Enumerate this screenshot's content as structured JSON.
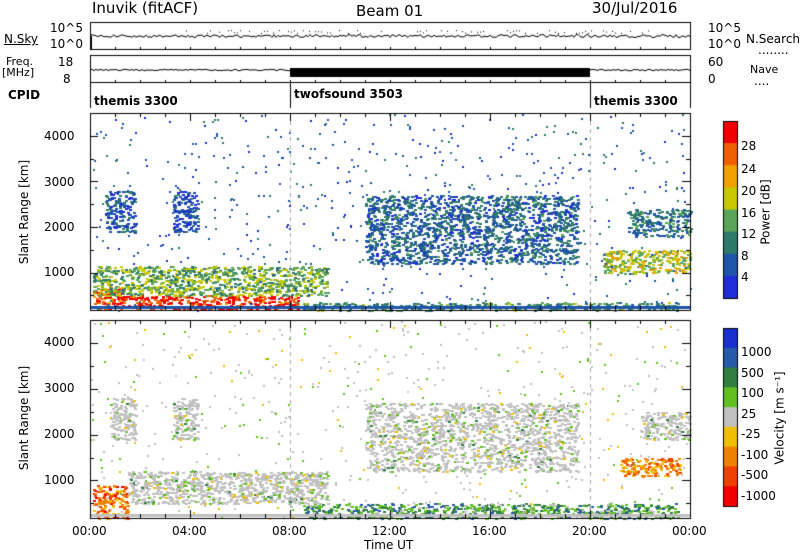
{
  "header": {
    "station": "Inuvik (fitACF)",
    "beam": "Beam 01",
    "date": "30/Jul/2016"
  },
  "top_panels": {
    "nsky_label": "N.Sky",
    "nsky_ticks": [
      "10^5",
      "10^0"
    ],
    "nsearch_label": "N.Search",
    "nsearch_ticks": [
      "10^5",
      "10^0"
    ],
    "freq_label": "Freq.",
    "freq_unit": "[MHz]",
    "freq_ticks": [
      "18",
      "8"
    ],
    "nave_label": "Nave",
    "nave_ticks": [
      "60",
      "0"
    ],
    "cpid_label": "CPID",
    "cpid_segments": [
      {
        "name": "themis 3300",
        "start_h": 0,
        "end_h": 8
      },
      {
        "name": "twofsound 3503",
        "start_h": 8,
        "end_h": 20
      },
      {
        "name": "themis 3300",
        "start_h": 20,
        "end_h": 24
      }
    ]
  },
  "chart_data": [
    {
      "type": "heatmap",
      "name": "power",
      "ylabel": "Slant Range [km]",
      "xlim": [
        0,
        24
      ],
      "ylim": [
        180,
        4500
      ],
      "yticks": [
        1000,
        2000,
        3000,
        4000
      ],
      "colorbar": {
        "label": "Power [dB]",
        "ticks": [
          4,
          8,
          12,
          16,
          20,
          24,
          28
        ],
        "colors": [
          "#1e2dd8",
          "#1f55a8",
          "#2e7a6a",
          "#5aa45a",
          "#c8c800",
          "#f0a000",
          "#f06000",
          "#f00000"
        ]
      },
      "regions": [
        {
          "x0": 0.1,
          "x1": 1.3,
          "y0": 180,
          "y1": 700,
          "level": 0.9
        },
        {
          "x0": 1.3,
          "x1": 8.3,
          "y0": 200,
          "y1": 500,
          "level": 0.95
        },
        {
          "x0": 0.1,
          "x1": 9.5,
          "y0": 500,
          "y1": 1150,
          "level": 0.45
        },
        {
          "x0": 0.6,
          "x1": 1.8,
          "y0": 1900,
          "y1": 2800,
          "level": 0.15
        },
        {
          "x0": 3.3,
          "x1": 4.3,
          "y0": 1900,
          "y1": 2800,
          "level": 0.1
        },
        {
          "x0": 8.5,
          "x1": 23.5,
          "y0": 180,
          "y1": 350,
          "level": 0.35
        },
        {
          "x0": 11.0,
          "x1": 19.5,
          "y0": 1200,
          "y1": 2700,
          "level": 0.2
        },
        {
          "x0": 20.5,
          "x1": 24.0,
          "y0": 1000,
          "y1": 1500,
          "level": 0.55
        },
        {
          "x0": 21.5,
          "x1": 24.0,
          "y0": 1800,
          "y1": 2400,
          "level": 0.25
        }
      ]
    },
    {
      "type": "heatmap",
      "name": "velocity",
      "xlabel": "Time UT",
      "ylabel": "Slant Range [km]",
      "xlim": [
        0,
        24
      ],
      "ylim": [
        180,
        4500
      ],
      "xticks": [
        "00:00",
        "04:00",
        "08:00",
        "12:00",
        "16:00",
        "20:00",
        "00:00"
      ],
      "yticks": [
        1000,
        2000,
        3000,
        4000
      ],
      "colorbar": {
        "label": "Velocity [m s⁻¹]",
        "ticks": [
          1000,
          500,
          100,
          25,
          -25,
          -100,
          -500,
          -1000
        ],
        "colors": [
          "#1a2fd0",
          "#255aa8",
          "#2f8040",
          "#60c020",
          "#c0c0c0",
          "#f0c000",
          "#f08000",
          "#f04000",
          "#f00000"
        ]
      },
      "regions": [
        {
          "x0": 0.1,
          "x1": 1.5,
          "y0": 180,
          "y1": 900,
          "level": 0.8
        },
        {
          "x0": 1.5,
          "x1": 9.5,
          "y0": 500,
          "y1": 1200,
          "level": 0.45
        },
        {
          "x0": 0.8,
          "x1": 1.8,
          "y0": 1900,
          "y1": 2800,
          "level": 0.45
        },
        {
          "x0": 3.3,
          "x1": 4.3,
          "y0": 1900,
          "y1": 2800,
          "level": 0.45
        },
        {
          "x0": 8.5,
          "x1": 23.5,
          "y0": 180,
          "y1": 500,
          "level": 0.3
        },
        {
          "x0": 11.0,
          "x1": 19.5,
          "y0": 1200,
          "y1": 2700,
          "level": 0.45
        },
        {
          "x0": 21.2,
          "x1": 23.6,
          "y0": 1100,
          "y1": 1500,
          "level": 0.75
        },
        {
          "x0": 22.0,
          "x1": 24.0,
          "y0": 1900,
          "y1": 2500,
          "level": 0.45
        }
      ]
    }
  ]
}
